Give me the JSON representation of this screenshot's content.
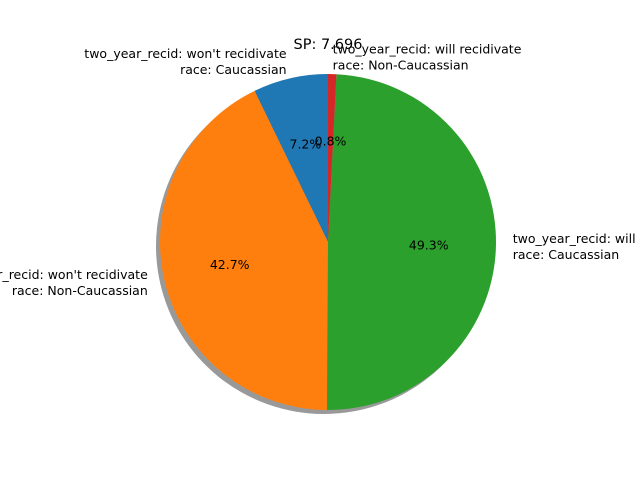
{
  "chart_data": {
    "type": "pie",
    "title": "SP: 7.696",
    "shadow": true,
    "start_angle_deg": 90,
    "direction": "counterclockwise",
    "slices": [
      {
        "label_line1": "two_year_recid: won't recidivate",
        "label_line2": "race: Caucassian",
        "value": 7.2,
        "pct_label": "7.2%",
        "color": "#1f77b4"
      },
      {
        "label_line1": "two_year_recid: won't recidivate",
        "label_line2": "race: Non-Caucassian",
        "value": 42.7,
        "pct_label": "42.7%",
        "color": "#ff7f0e"
      },
      {
        "label_line1": "two_year_recid: will recidivate",
        "label_line2": "race: Caucassian",
        "value": 49.3,
        "pct_label": "49.3%",
        "color": "#2ca02c"
      },
      {
        "label_line1": "two_year_recid: will recidivate",
        "label_line2": "race: Non-Caucassian",
        "value": 0.8,
        "pct_label": "0.8%",
        "color": "#d62728"
      }
    ]
  }
}
